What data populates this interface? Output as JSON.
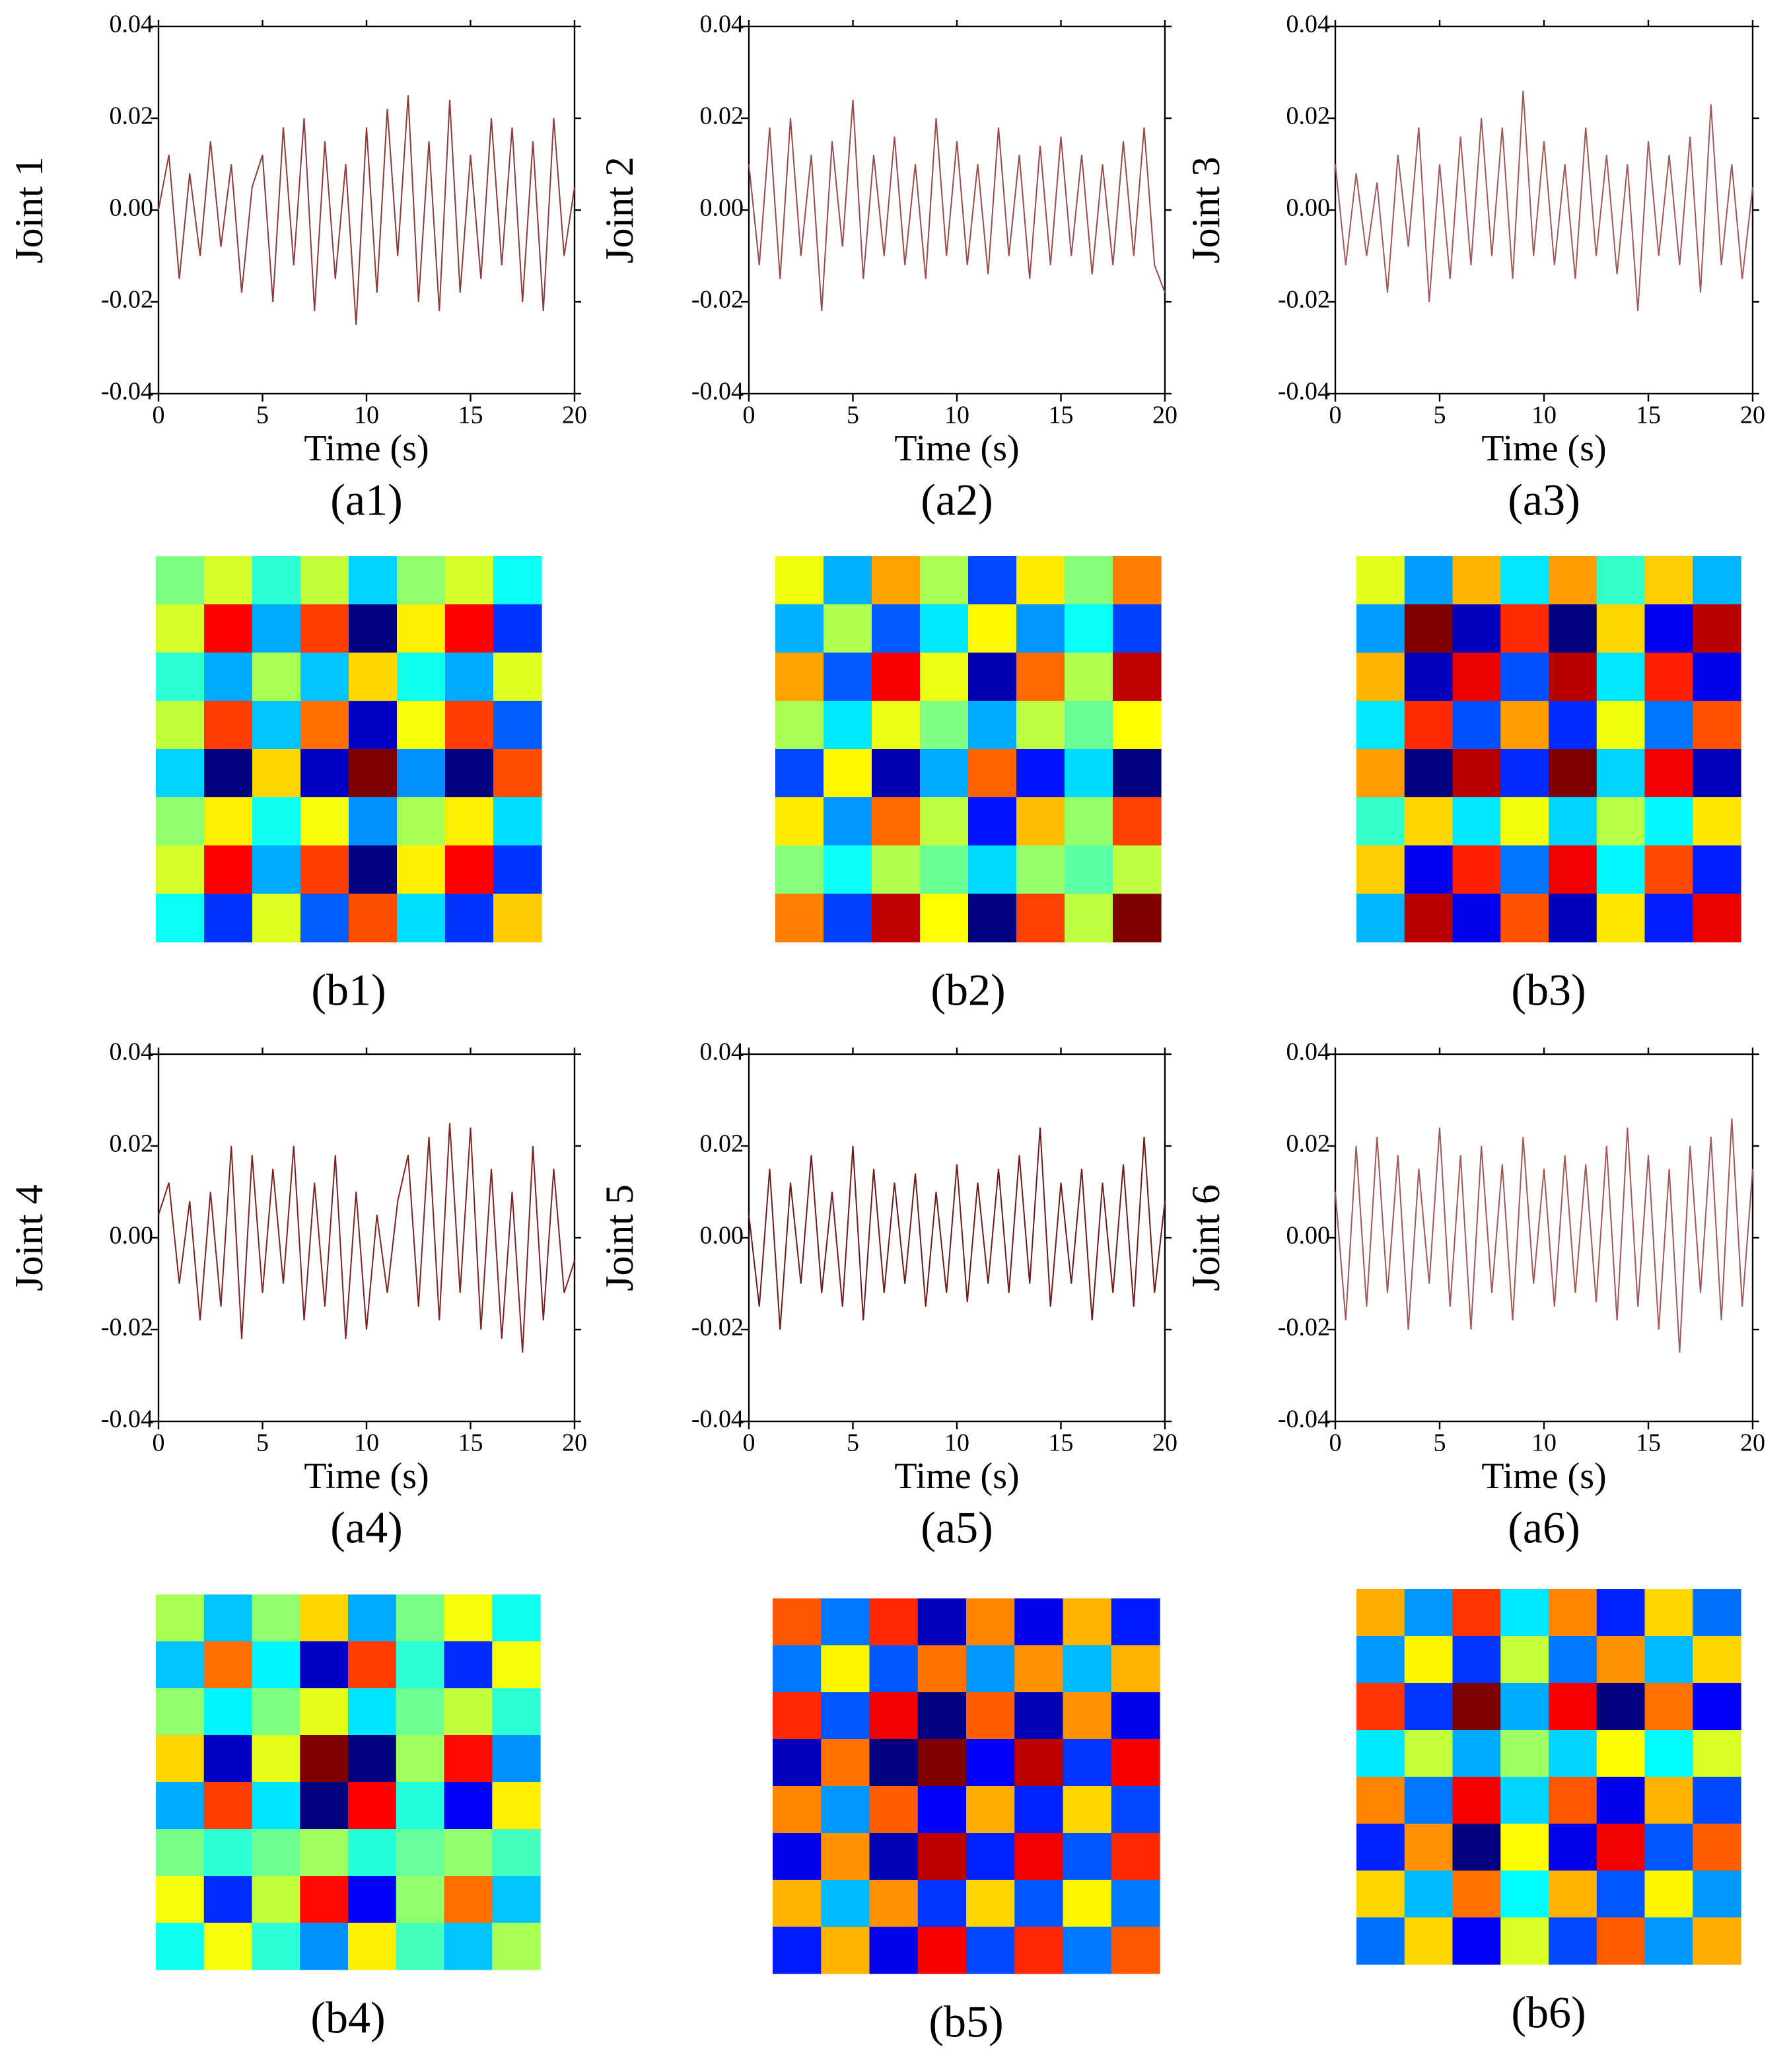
{
  "chart_data": [
    {
      "type": "line",
      "y_label": "Joint 1",
      "x_label": "Time (s)",
      "caption": "(a1)",
      "color": "#8c3a3a",
      "xlim": [
        0,
        20
      ],
      "ylim": [
        -0.04,
        0.04
      ],
      "xticks": [
        0,
        5,
        10,
        15,
        20
      ],
      "yticks": [
        -0.04,
        -0.02,
        {
          "value": 0,
          "label": "0.00"
        },
        0.02,
        0.04
      ],
      "x": [
        0,
        0.5,
        1,
        1.5,
        2,
        2.5,
        3,
        3.5,
        4,
        4.5,
        5,
        5.5,
        6,
        6.5,
        7,
        7.5,
        8,
        8.5,
        9,
        9.5,
        10,
        10.5,
        11,
        11.5,
        12,
        12.5,
        13,
        13.5,
        14,
        14.5,
        15,
        15.5,
        16,
        16.5,
        17,
        17.5,
        18,
        18.5,
        19,
        19.5,
        20
      ],
      "values": [
        0.0,
        0.012,
        -0.015,
        0.008,
        -0.01,
        0.015,
        -0.008,
        0.01,
        -0.018,
        0.005,
        0.012,
        -0.02,
        0.018,
        -0.012,
        0.02,
        -0.022,
        0.015,
        -0.015,
        0.01,
        -0.025,
        0.018,
        -0.018,
        0.022,
        -0.01,
        0.025,
        -0.02,
        0.015,
        -0.022,
        0.024,
        -0.018,
        0.012,
        -0.015,
        0.02,
        -0.012,
        0.018,
        -0.02,
        0.015,
        -0.022,
        0.02,
        -0.01,
        0.005
      ]
    },
    {
      "type": "line",
      "y_label": "Joint 2",
      "x_label": "Time (s)",
      "caption": "(a2)",
      "color": "#9a4a4a",
      "xlim": [
        0,
        20
      ],
      "ylim": [
        -0.04,
        0.04
      ],
      "xticks": [
        0,
        5,
        10,
        15,
        20
      ],
      "yticks": [
        -0.04,
        -0.02,
        {
          "value": 0,
          "label": "0.00"
        },
        0.02,
        0.04
      ],
      "x": [
        0,
        0.5,
        1,
        1.5,
        2,
        2.5,
        3,
        3.5,
        4,
        4.5,
        5,
        5.5,
        6,
        6.5,
        7,
        7.5,
        8,
        8.5,
        9,
        9.5,
        10,
        10.5,
        11,
        11.5,
        12,
        12.5,
        13,
        13.5,
        14,
        14.5,
        15,
        15.5,
        16,
        16.5,
        17,
        17.5,
        18,
        18.5,
        19,
        19.5,
        20
      ],
      "values": [
        0.01,
        -0.012,
        0.018,
        -0.015,
        0.02,
        -0.01,
        0.012,
        -0.022,
        0.015,
        -0.008,
        0.024,
        -0.015,
        0.012,
        -0.01,
        0.016,
        -0.012,
        0.01,
        -0.015,
        0.02,
        -0.01,
        0.015,
        -0.012,
        0.01,
        -0.014,
        0.018,
        -0.01,
        0.012,
        -0.015,
        0.014,
        -0.012,
        0.016,
        -0.01,
        0.012,
        -0.014,
        0.01,
        -0.012,
        0.015,
        -0.01,
        0.018,
        -0.012,
        -0.018
      ]
    },
    {
      "type": "line",
      "y_label": "Joint 3",
      "x_label": "Time (s)",
      "caption": "(a3)",
      "color": "#a05858",
      "xlim": [
        0,
        20
      ],
      "ylim": [
        -0.04,
        0.04
      ],
      "xticks": [
        0,
        5,
        10,
        15,
        20
      ],
      "yticks": [
        -0.04,
        -0.02,
        {
          "value": 0,
          "label": "0.00"
        },
        0.02,
        0.04
      ],
      "x": [
        0,
        0.5,
        1,
        1.5,
        2,
        2.5,
        3,
        3.5,
        4,
        4.5,
        5,
        5.5,
        6,
        6.5,
        7,
        7.5,
        8,
        8.5,
        9,
        9.5,
        10,
        10.5,
        11,
        11.5,
        12,
        12.5,
        13,
        13.5,
        14,
        14.5,
        15,
        15.5,
        16,
        16.5,
        17,
        17.5,
        18,
        18.5,
        19,
        19.5,
        20
      ],
      "values": [
        0.01,
        -0.012,
        0.008,
        -0.01,
        0.006,
        -0.018,
        0.012,
        -0.008,
        0.018,
        -0.02,
        0.01,
        -0.015,
        0.016,
        -0.012,
        0.02,
        -0.01,
        0.018,
        -0.015,
        0.026,
        -0.01,
        0.015,
        -0.012,
        0.01,
        -0.015,
        0.018,
        -0.01,
        0.012,
        -0.014,
        0.01,
        -0.022,
        0.015,
        -0.01,
        0.012,
        -0.012,
        0.016,
        -0.018,
        0.023,
        -0.012,
        0.01,
        -0.015,
        0.005
      ]
    },
    {
      "type": "heatmap",
      "caption": "(b1)",
      "colormap": "jet",
      "z": [
        [
          0.04,
          0.14,
          -0.06,
          0.12,
          -0.16,
          0.06,
          0.14,
          -0.1
        ],
        [
          0.14,
          0.49,
          -0.21,
          0.42,
          -0.56,
          0.21,
          0.49,
          -0.35
        ],
        [
          -0.06,
          -0.21,
          0.09,
          -0.18,
          0.24,
          -0.09,
          -0.21,
          0.15
        ],
        [
          0.12,
          0.42,
          -0.18,
          0.36,
          -0.48,
          0.18,
          0.42,
          -0.3
        ],
        [
          -0.16,
          -0.56,
          0.24,
          -0.48,
          0.64,
          -0.24,
          -0.56,
          0.4
        ],
        [
          0.06,
          0.21,
          -0.09,
          0.18,
          -0.24,
          0.09,
          0.21,
          -0.15
        ],
        [
          0.14,
          0.49,
          -0.21,
          0.42,
          -0.56,
          0.21,
          0.49,
          -0.35
        ],
        [
          -0.1,
          -0.35,
          0.15,
          -0.3,
          0.4,
          -0.15,
          -0.35,
          0.25
        ]
      ]
    },
    {
      "type": "heatmap",
      "caption": "(b2)",
      "colormap": "jet",
      "z": [
        [
          0.25,
          -0.2,
          0.4,
          0.15,
          -0.35,
          0.3,
          0.1,
          0.45
        ],
        [
          -0.2,
          0.16,
          -0.32,
          -0.12,
          0.28,
          -0.24,
          -0.08,
          -0.36
        ],
        [
          0.4,
          -0.32,
          0.64,
          0.24,
          -0.56,
          0.48,
          0.16,
          0.72
        ],
        [
          0.15,
          -0.12,
          0.24,
          0.09,
          -0.21,
          0.18,
          0.06,
          0.27
        ],
        [
          -0.35,
          0.28,
          -0.56,
          -0.21,
          0.49,
          -0.42,
          -0.14,
          -0.63
        ],
        [
          0.3,
          -0.24,
          0.48,
          0.18,
          -0.42,
          0.36,
          0.12,
          0.54
        ],
        [
          0.1,
          -0.08,
          0.16,
          0.06,
          -0.14,
          0.12,
          0.04,
          0.18
        ],
        [
          0.45,
          -0.36,
          0.72,
          0.27,
          -0.63,
          0.54,
          0.18,
          0.81
        ]
      ]
    },
    {
      "type": "heatmap",
      "caption": "(b3)",
      "colormap": "jet",
      "z": [
        [
          0.16,
          -0.36,
          0.32,
          -0.24,
          0.36,
          -0.12,
          0.28,
          -0.32
        ],
        [
          -0.36,
          0.81,
          -0.72,
          0.54,
          -0.81,
          0.27,
          -0.63,
          0.72
        ],
        [
          0.32,
          -0.72,
          0.64,
          -0.48,
          0.72,
          -0.24,
          0.56,
          -0.64
        ],
        [
          -0.24,
          0.54,
          -0.48,
          0.36,
          -0.54,
          0.18,
          -0.42,
          0.48
        ],
        [
          0.36,
          -0.81,
          0.72,
          -0.54,
          0.81,
          -0.27,
          0.63,
          -0.72
        ],
        [
          -0.12,
          0.27,
          -0.24,
          0.18,
          -0.27,
          0.09,
          -0.21,
          0.24
        ],
        [
          0.28,
          -0.63,
          0.56,
          -0.42,
          0.63,
          -0.21,
          0.49,
          -0.56
        ],
        [
          -0.32,
          0.72,
          -0.64,
          0.48,
          -0.72,
          0.24,
          -0.56,
          0.64
        ]
      ]
    },
    {
      "type": "line",
      "y_label": "Joint 4",
      "x_label": "Time (s)",
      "caption": "(a4)",
      "color": "#7a2424",
      "xlim": [
        0,
        20
      ],
      "ylim": [
        -0.04,
        0.04
      ],
      "xticks": [
        0,
        5,
        10,
        15,
        20
      ],
      "yticks": [
        -0.04,
        -0.02,
        {
          "value": 0,
          "label": "0.00"
        },
        0.02,
        0.04
      ],
      "x": [
        0,
        0.5,
        1,
        1.5,
        2,
        2.5,
        3,
        3.5,
        4,
        4.5,
        5,
        5.5,
        6,
        6.5,
        7,
        7.5,
        8,
        8.5,
        9,
        9.5,
        10,
        10.5,
        11,
        11.5,
        12,
        12.5,
        13,
        13.5,
        14,
        14.5,
        15,
        15.5,
        16,
        16.5,
        17,
        17.5,
        18,
        18.5,
        19,
        19.5,
        20
      ],
      "values": [
        0.005,
        0.012,
        -0.01,
        0.008,
        -0.018,
        0.01,
        -0.015,
        0.02,
        -0.022,
        0.018,
        -0.012,
        0.015,
        -0.01,
        0.02,
        -0.018,
        0.012,
        -0.015,
        0.018,
        -0.022,
        0.01,
        -0.02,
        0.005,
        -0.012,
        0.008,
        0.018,
        -0.015,
        0.022,
        -0.018,
        0.025,
        -0.012,
        0.024,
        -0.02,
        0.015,
        -0.022,
        0.01,
        -0.025,
        0.02,
        -0.018,
        0.015,
        -0.012,
        -0.005
      ]
    },
    {
      "type": "line",
      "y_label": "Joint 5",
      "x_label": "Time (s)",
      "caption": "(a5)",
      "color": "#6e1a1a",
      "xlim": [
        0,
        20
      ],
      "ylim": [
        -0.04,
        0.04
      ],
      "xticks": [
        0,
        5,
        10,
        15,
        20
      ],
      "yticks": [
        -0.04,
        -0.02,
        {
          "value": 0,
          "label": "0.00"
        },
        0.02,
        0.04
      ],
      "x": [
        0,
        0.5,
        1,
        1.5,
        2,
        2.5,
        3,
        3.5,
        4,
        4.5,
        5,
        5.5,
        6,
        6.5,
        7,
        7.5,
        8,
        8.5,
        9,
        9.5,
        10,
        10.5,
        11,
        11.5,
        12,
        12.5,
        13,
        13.5,
        14,
        14.5,
        15,
        15.5,
        16,
        16.5,
        17,
        17.5,
        18,
        18.5,
        19,
        19.5,
        20
      ],
      "values": [
        0.005,
        -0.015,
        0.015,
        -0.02,
        0.012,
        -0.01,
        0.018,
        -0.012,
        0.01,
        -0.015,
        0.02,
        -0.018,
        0.015,
        -0.012,
        0.012,
        -0.01,
        0.014,
        -0.015,
        0.01,
        -0.012,
        0.016,
        -0.014,
        0.012,
        -0.01,
        0.015,
        -0.012,
        0.018,
        -0.01,
        0.024,
        -0.015,
        0.012,
        -0.01,
        0.015,
        -0.018,
        0.012,
        -0.012,
        0.016,
        -0.015,
        0.022,
        -0.012,
        0.008
      ]
    },
    {
      "type": "line",
      "y_label": "Joint 6",
      "x_label": "Time (s)",
      "caption": "(a6)",
      "color": "#a05858",
      "xlim": [
        0,
        20
      ],
      "ylim": [
        -0.04,
        0.04
      ],
      "xticks": [
        0,
        5,
        10,
        15,
        20
      ],
      "yticks": [
        -0.04,
        -0.02,
        {
          "value": 0,
          "label": "0.00"
        },
        0.02,
        0.04
      ],
      "x": [
        0,
        0.5,
        1,
        1.5,
        2,
        2.5,
        3,
        3.5,
        4,
        4.5,
        5,
        5.5,
        6,
        6.5,
        7,
        7.5,
        8,
        8.5,
        9,
        9.5,
        10,
        10.5,
        11,
        11.5,
        12,
        12.5,
        13,
        13.5,
        14,
        14.5,
        15,
        15.5,
        16,
        16.5,
        17,
        17.5,
        18,
        18.5,
        19,
        19.5,
        20
      ],
      "values": [
        0.01,
        -0.018,
        0.02,
        -0.015,
        0.022,
        -0.012,
        0.018,
        -0.02,
        0.015,
        -0.01,
        0.024,
        -0.015,
        0.018,
        -0.02,
        0.02,
        -0.012,
        0.016,
        -0.018,
        0.022,
        -0.01,
        0.015,
        -0.015,
        0.018,
        -0.012,
        0.016,
        -0.014,
        0.02,
        -0.018,
        0.024,
        -0.015,
        0.018,
        -0.02,
        0.015,
        -0.025,
        0.02,
        -0.012,
        0.022,
        -0.018,
        0.026,
        -0.015,
        0.015
      ]
    },
    {
      "type": "heatmap",
      "caption": "(b4)",
      "colormap": "jet",
      "z": [
        [
          0.09,
          -0.18,
          0.06,
          0.24,
          -0.21,
          0.03,
          0.18,
          -0.09
        ],
        [
          -0.18,
          0.36,
          -0.12,
          -0.48,
          0.42,
          -0.06,
          -0.36,
          0.18
        ],
        [
          0.06,
          -0.12,
          0.04,
          0.16,
          -0.14,
          0.02,
          0.12,
          -0.06
        ],
        [
          0.24,
          -0.48,
          0.16,
          0.64,
          -0.56,
          0.08,
          0.48,
          -0.24
        ],
        [
          -0.21,
          0.42,
          -0.14,
          -0.56,
          0.49,
          -0.07,
          -0.42,
          0.21
        ],
        [
          0.03,
          -0.06,
          0.02,
          0.08,
          -0.07,
          0.01,
          0.06,
          -0.03
        ],
        [
          0.18,
          -0.36,
          0.12,
          0.48,
          -0.42,
          0.06,
          0.36,
          -0.18
        ],
        [
          -0.09,
          0.18,
          -0.06,
          -0.24,
          0.21,
          -0.03,
          -0.18,
          0.09
        ]
      ]
    },
    {
      "type": "heatmap",
      "caption": "(b5)",
      "colormap": "jet",
      "z": [
        [
          0.49,
          -0.35,
          0.56,
          -0.63,
          0.42,
          -0.56,
          0.35,
          -0.49
        ],
        [
          -0.35,
          0.25,
          -0.4,
          0.45,
          -0.3,
          0.4,
          -0.25,
          0.35
        ],
        [
          0.56,
          -0.4,
          0.64,
          -0.72,
          0.48,
          -0.64,
          0.4,
          -0.56
        ],
        [
          -0.63,
          0.45,
          -0.72,
          0.81,
          -0.54,
          0.72,
          -0.45,
          0.63
        ],
        [
          0.42,
          -0.3,
          0.48,
          -0.54,
          0.36,
          -0.48,
          0.3,
          -0.42
        ],
        [
          -0.56,
          0.4,
          -0.64,
          0.72,
          -0.48,
          0.64,
          -0.4,
          0.56
        ],
        [
          0.35,
          -0.25,
          0.4,
          -0.45,
          0.3,
          -0.4,
          0.25,
          -0.35
        ],
        [
          -0.49,
          0.35,
          -0.56,
          0.63,
          -0.42,
          0.56,
          -0.35,
          0.49
        ]
      ]
    },
    {
      "type": "heatmap",
      "caption": "(b6)",
      "colormap": "jet",
      "z": [
        [
          0.36,
          -0.3,
          0.54,
          -0.18,
          0.42,
          -0.48,
          0.3,
          -0.36
        ],
        [
          -0.3,
          0.25,
          -0.45,
          0.15,
          -0.35,
          0.4,
          -0.25,
          0.3
        ],
        [
          0.54,
          -0.45,
          0.81,
          -0.27,
          0.63,
          -0.72,
          0.45,
          -0.54
        ],
        [
          -0.18,
          0.15,
          -0.27,
          0.09,
          -0.21,
          0.24,
          -0.15,
          0.18
        ],
        [
          0.42,
          -0.35,
          0.63,
          -0.21,
          0.49,
          -0.56,
          0.35,
          -0.42
        ],
        [
          -0.48,
          0.4,
          -0.72,
          0.24,
          -0.56,
          0.64,
          -0.4,
          0.48
        ],
        [
          0.3,
          -0.25,
          0.45,
          -0.15,
          0.35,
          -0.4,
          0.25,
          -0.3
        ],
        [
          -0.36,
          0.3,
          -0.54,
          0.18,
          -0.42,
          0.48,
          -0.3,
          0.36
        ]
      ]
    }
  ]
}
